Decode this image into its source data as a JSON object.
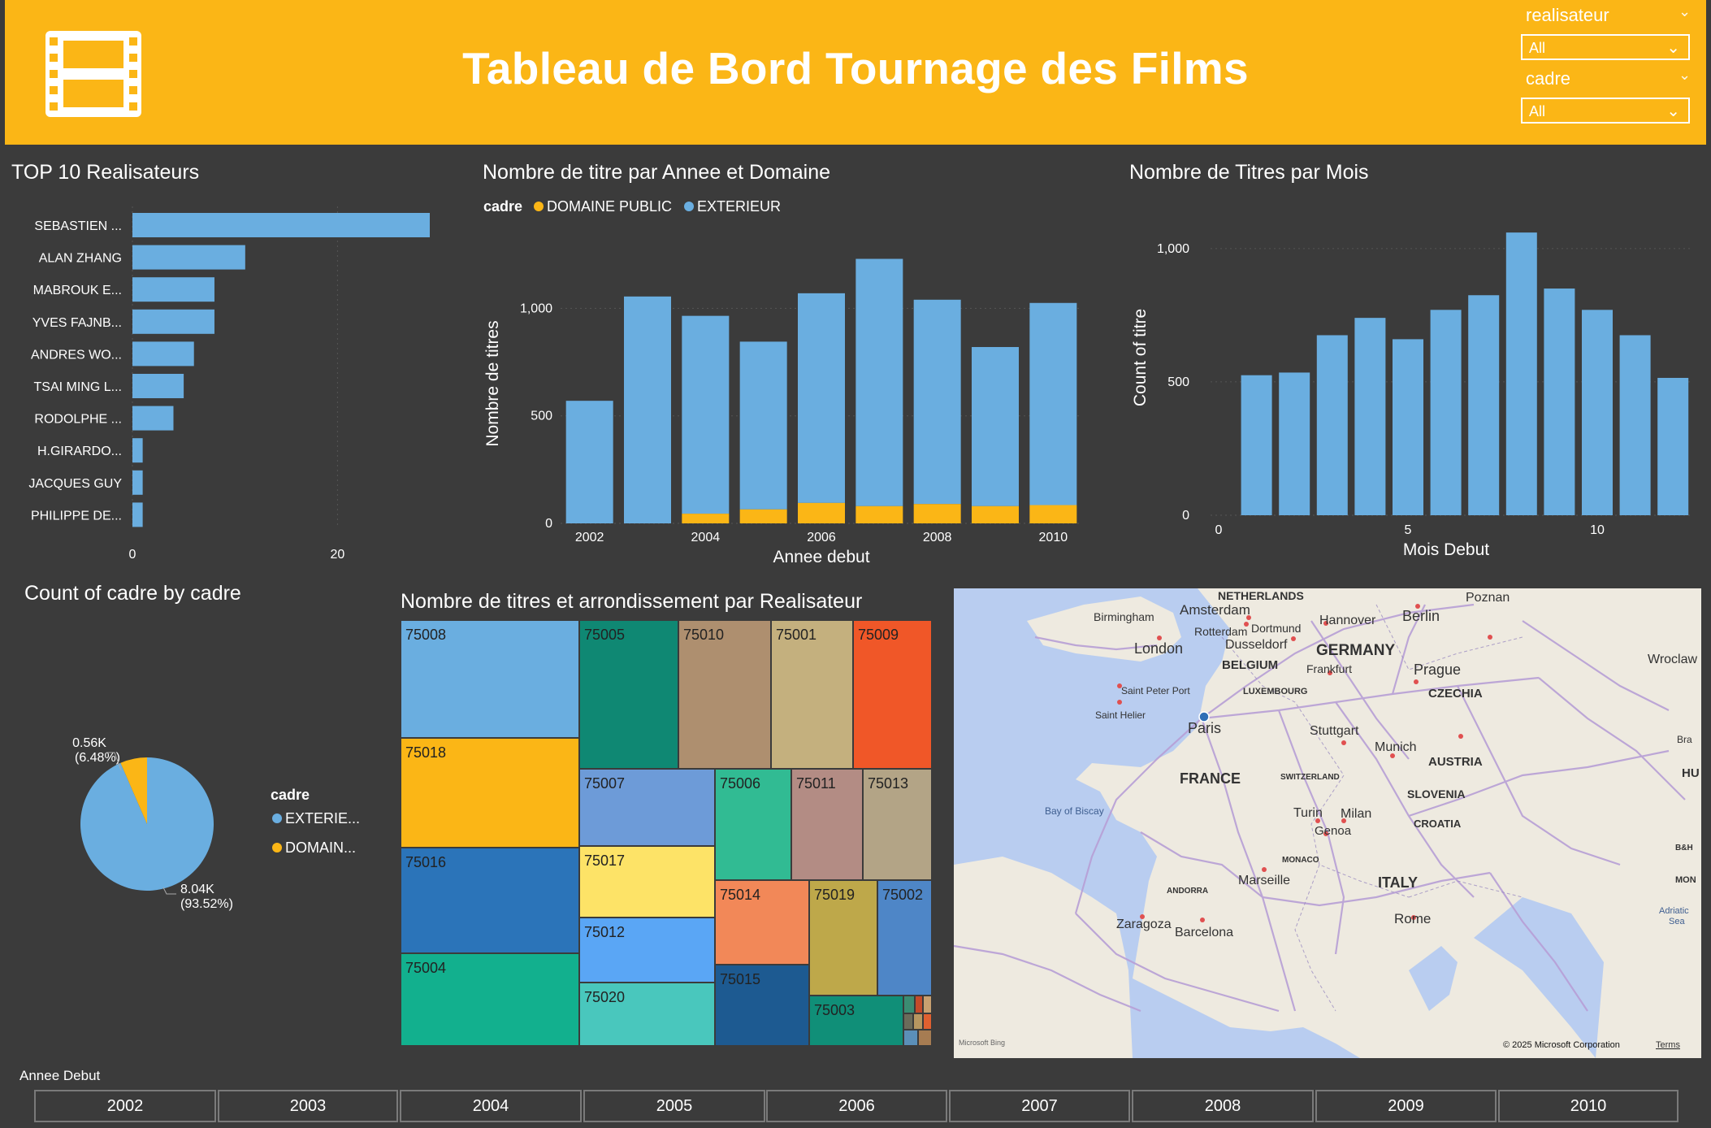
{
  "header": {
    "title": "Tableau de Bord Tournage des Films",
    "slicers": [
      {
        "label": "realisateur",
        "value": "All"
      },
      {
        "label": "cadre",
        "value": "All"
      }
    ]
  },
  "colors": {
    "header": "#fbb616",
    "background": "#3b3b3b",
    "exterieur": "#6aaee0",
    "domaine_public": "#fbb616"
  },
  "top10": {
    "title": "TOP 10 Realisateurs",
    "ticks": [
      "0",
      "20"
    ]
  },
  "year_chart": {
    "title": "Nombre de titre par Annee et Domaine",
    "legend_title": "cadre",
    "legend_items": [
      "DOMAINE PUBLIC",
      "EXTERIEUR"
    ],
    "xlabel": "Annee debut",
    "ylabel": "Nombre de titres",
    "yticks": [
      "0",
      "500",
      "1,000"
    ],
    "xticks": [
      "2002",
      "2004",
      "2006",
      "2008",
      "2010"
    ]
  },
  "month_chart": {
    "title": "Nombre de Titres par Mois",
    "xlabel": "Mois Debut",
    "ylabel": "Count of titre",
    "yticks": [
      "0",
      "500",
      "1,000"
    ],
    "xticks": [
      "0",
      "5",
      "10"
    ]
  },
  "pie": {
    "title": "Count of cadre by cadre",
    "legend_title": "cadre",
    "legend_items": [
      "EXTERIE...",
      "DOMAIN..."
    ],
    "small_label_1": "0.56K",
    "small_label_2": "(6.48%)",
    "large_label_1": "8.04K",
    "large_label_2": "(93.52%)"
  },
  "treemap": {
    "title": "Nombre de titres et arrondissement par Realisateur"
  },
  "map": {
    "labels": [
      "NETHERLANDS",
      "Amsterdam",
      "Birmingham",
      "Rotterdam",
      "Dortmund",
      "Hannover",
      "Berlin",
      "Poznan",
      "London",
      "Dusseldorf",
      "GERMANY",
      "BELGIUM",
      "Frankfurt",
      "Prague",
      "Wroclaw",
      "Saint Peter Port",
      "LUXEMBOURG",
      "CZECHIA",
      "Saint Helier",
      "Paris",
      "Stuttgart",
      "Munich",
      "AUSTRIA",
      "FRANCE",
      "SWITZERLAND",
      "SLOVENIA",
      "Bay of Biscay",
      "Turin",
      "Milan",
      "CROATIA",
      "Genoa",
      "MONACO",
      "ANDORRA",
      "Marseille",
      "ITALY",
      "Zaragoza",
      "Barcelona",
      "Rome",
      "Adriatic",
      "Sea",
      "B&H",
      "HU",
      "Bra",
      "MON"
    ],
    "copyright": "© 2025 Microsoft Corporation",
    "terms": "Terms",
    "bing": "Microsoft Bing"
  },
  "year_slicer": {
    "label": "Annee Debut",
    "years": [
      "2002",
      "2003",
      "2004",
      "2005",
      "2006",
      "2007",
      "2008",
      "2009",
      "2010"
    ]
  },
  "chart_data": [
    {
      "type": "bar",
      "orientation": "horizontal",
      "title": "TOP 10 Realisateurs",
      "categories": [
        "SEBASTIEN ...",
        "ALAN ZHANG",
        "MABROUK E...",
        "YVES FAJNB...",
        "ANDRES WO...",
        "TSAI MING L...",
        "RODOLPHE ...",
        "H.GIRARDO...",
        "JACQUES GUY",
        "PHILIPPE DE..."
      ],
      "values": [
        29,
        11,
        8,
        8,
        6,
        5,
        4,
        1,
        1,
        1
      ],
      "xlim": [
        0,
        29
      ],
      "grid": true
    },
    {
      "type": "bar",
      "stacked": true,
      "title": "Nombre de titre par Annee et Domaine",
      "categories": [
        2002,
        2003,
        2004,
        2005,
        2006,
        2007,
        2008,
        2009,
        2010
      ],
      "series": [
        {
          "name": "DOMAINE PUBLIC",
          "values": [
            0,
            0,
            45,
            65,
            95,
            80,
            90,
            80,
            85
          ]
        },
        {
          "name": "EXTERIEUR",
          "values": [
            570,
            1055,
            920,
            780,
            975,
            1150,
            950,
            740,
            940
          ]
        }
      ],
      "xlabel": "Annee debut",
      "ylabel": "Nombre de titres",
      "ylim": [
        0,
        1300
      ],
      "legend": "top-left",
      "grid": true
    },
    {
      "type": "bar",
      "title": "Nombre de Titres par Mois",
      "categories": [
        1,
        2,
        3,
        4,
        5,
        6,
        7,
        8,
        9,
        10,
        11,
        12
      ],
      "values": [
        525,
        535,
        675,
        740,
        660,
        770,
        825,
        1060,
        850,
        770,
        675,
        515
      ],
      "xlabel": "Mois Debut",
      "ylabel": "Count of titre",
      "ylim": [
        0,
        1100
      ],
      "grid": true
    },
    {
      "type": "pie",
      "title": "Count of cadre by cadre",
      "labels": [
        "EXTERIEUR",
        "DOMAINE PUBLIC"
      ],
      "values": [
        8040,
        560
      ],
      "percent": [
        93.52,
        6.48
      ],
      "legend": "right"
    }
  ]
}
